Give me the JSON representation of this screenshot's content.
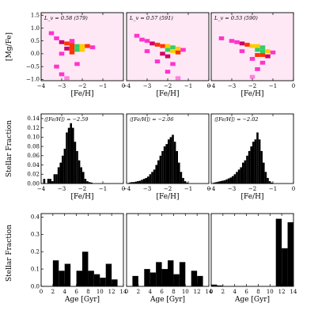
{
  "chart_data": [
    {
      "type": "heatmap",
      "panel": "top-left",
      "annotation": "L_v = 0.58 (579)",
      "xlabel": "[Fe/H]",
      "ylabel": "[Mg/Fe]",
      "xlim": [
        -4,
        0
      ],
      "ylim": [
        -1.05,
        1.6
      ],
      "xticks": [
        "−4",
        "−3",
        "−2",
        "−1",
        "0"
      ],
      "yticks": [
        "1.5",
        "1.0",
        "0.5",
        "0.0",
        "−0.5",
        "−1.0"
      ],
      "colormap": [
        "#ffe8f6",
        "#ff80e0",
        "#ff33cc",
        "#cc0066",
        "#ff3300",
        "#ffcc00",
        "#33cc66",
        "#3366ff"
      ],
      "cell_size": [
        0.25,
        0.15
      ],
      "cells": [
        {
          "x": -3.5,
          "y": 0.8,
          "v": 0.3
        },
        {
          "x": -3.25,
          "y": 0.6,
          "v": 0.25
        },
        {
          "x": -3.0,
          "y": 0.45,
          "v": 0.4
        },
        {
          "x": -2.75,
          "y": 0.4,
          "v": 0.5
        },
        {
          "x": -2.75,
          "y": 0.2,
          "v": 0.45
        },
        {
          "x": -2.5,
          "y": 0.35,
          "v": 0.6
        },
        {
          "x": -2.5,
          "y": 0.2,
          "v": 0.55
        },
        {
          "x": -2.25,
          "y": 0.3,
          "v": 0.9
        },
        {
          "x": -2.25,
          "y": 0.15,
          "v": 0.85
        },
        {
          "x": -2.5,
          "y": 0.05,
          "v": 0.5
        },
        {
          "x": -2.0,
          "y": 0.3,
          "v": 0.75
        },
        {
          "x": -2.0,
          "y": 0.15,
          "v": 0.7
        },
        {
          "x": -1.75,
          "y": 0.3,
          "v": 0.5
        },
        {
          "x": -1.5,
          "y": 0.25,
          "v": 0.35
        },
        {
          "x": -3.0,
          "y": 0.0,
          "v": 0.3
        },
        {
          "x": -3.25,
          "y": -0.5,
          "v": 0.3
        },
        {
          "x": -3.0,
          "y": -0.8,
          "v": 0.25
        },
        {
          "x": -2.25,
          "y": -0.4,
          "v": 0.25
        },
        {
          "x": -2.75,
          "y": -0.95,
          "v": 0.2
        },
        {
          "x": -2.5,
          "y": 0.5,
          "v": 0.3
        }
      ]
    },
    {
      "type": "heatmap",
      "panel": "top-middle",
      "annotation": "L_v = 0.57 (591)",
      "xlabel": "[Fe/H]",
      "ylabel": "",
      "xlim": [
        -4,
        0
      ],
      "ylim": [
        -1.05,
        1.6
      ],
      "xticks": [
        "−4",
        "−3",
        "−2",
        "−1",
        "0"
      ],
      "yticks": [],
      "cells": [
        {
          "x": -3.5,
          "y": 0.7,
          "v": 0.25
        },
        {
          "x": -3.25,
          "y": 0.55,
          "v": 0.3
        },
        {
          "x": -3.0,
          "y": 0.5,
          "v": 0.35
        },
        {
          "x": -2.75,
          "y": 0.4,
          "v": 0.4
        },
        {
          "x": -2.5,
          "y": 0.35,
          "v": 0.5
        },
        {
          "x": -2.25,
          "y": 0.3,
          "v": 0.6
        },
        {
          "x": -2.0,
          "y": 0.3,
          "v": 0.75
        },
        {
          "x": -2.0,
          "y": 0.15,
          "v": 0.8
        },
        {
          "x": -1.75,
          "y": 0.25,
          "v": 0.85
        },
        {
          "x": -1.75,
          "y": 0.1,
          "v": 0.75
        },
        {
          "x": -1.5,
          "y": 0.2,
          "v": 0.65
        },
        {
          "x": -1.5,
          "y": 0.05,
          "v": 0.5
        },
        {
          "x": -2.25,
          "y": 0.0,
          "v": 0.45
        },
        {
          "x": -2.0,
          "y": -0.1,
          "v": 0.4
        },
        {
          "x": -1.25,
          "y": 0.15,
          "v": 0.35
        },
        {
          "x": -2.5,
          "y": -0.3,
          "v": 0.3
        },
        {
          "x": -1.75,
          "y": -0.4,
          "v": 0.3
        },
        {
          "x": -2.0,
          "y": -0.7,
          "v": 0.25
        },
        {
          "x": -1.5,
          "y": -0.95,
          "v": 0.2
        },
        {
          "x": -3.0,
          "y": 0.1,
          "v": 0.3
        }
      ]
    },
    {
      "type": "heatmap",
      "panel": "top-right",
      "annotation": "L_v = 0.53 (590)",
      "xlabel": "[Fe/H]",
      "ylabel": "",
      "xlim": [
        -4,
        0
      ],
      "ylim": [
        -1.05,
        1.6
      ],
      "xticks": [
        "−4",
        "−3",
        "−2",
        "−1",
        "0"
      ],
      "yticks": [],
      "cells": [
        {
          "x": -3.5,
          "y": 0.6,
          "v": 0.25
        },
        {
          "x": -3.0,
          "y": 0.5,
          "v": 0.3
        },
        {
          "x": -2.75,
          "y": 0.45,
          "v": 0.35
        },
        {
          "x": -2.5,
          "y": 0.4,
          "v": 0.4
        },
        {
          "x": -2.25,
          "y": 0.35,
          "v": 0.5
        },
        {
          "x": -2.0,
          "y": 0.3,
          "v": 0.65
        },
        {
          "x": -1.75,
          "y": 0.3,
          "v": 0.75
        },
        {
          "x": -1.5,
          "y": 0.25,
          "v": 0.9
        },
        {
          "x": -1.75,
          "y": 0.15,
          "v": 0.8
        },
        {
          "x": -1.5,
          "y": 0.1,
          "v": 0.8
        },
        {
          "x": -1.25,
          "y": 0.1,
          "v": 0.65
        },
        {
          "x": -1.5,
          "y": -0.05,
          "v": 0.55
        },
        {
          "x": -1.75,
          "y": -0.05,
          "v": 0.5
        },
        {
          "x": -1.25,
          "y": -0.1,
          "v": 0.4
        },
        {
          "x": -2.0,
          "y": -0.2,
          "v": 0.35
        },
        {
          "x": -1.5,
          "y": -0.35,
          "v": 0.3
        },
        {
          "x": -1.75,
          "y": -0.6,
          "v": 0.25
        },
        {
          "x": -2.0,
          "y": -0.9,
          "v": 0.2
        },
        {
          "x": -1.0,
          "y": 0.05,
          "v": 0.3
        },
        {
          "x": -2.5,
          "y": 0.1,
          "v": 0.3
        }
      ]
    },
    {
      "type": "bar",
      "panel": "middle-left",
      "annotation": "⟨[Fe/H]⟩ = −2.59",
      "xlabel": "[Fe/H]",
      "ylabel": "Stellar Fraction",
      "xlim": [
        -4,
        0
      ],
      "ylim": [
        0,
        0.15
      ],
      "xticks": [
        "−4",
        "−3",
        "−2",
        "−1",
        "0"
      ],
      "yticks": [
        "0.00",
        "0.02",
        "0.04",
        "0.06",
        "0.08",
        "0.10",
        "0.12",
        "0.14"
      ],
      "bin_width": 0.1,
      "x": [
        -3.85,
        -3.75,
        -3.65,
        -3.55,
        -3.45,
        -3.35,
        -3.25,
        -3.15,
        -3.05,
        -2.95,
        -2.85,
        -2.75,
        -2.65,
        -2.55,
        -2.45,
        -2.35,
        -2.25,
        -2.15,
        -2.05,
        -1.95,
        -1.85,
        -1.75,
        -1.65,
        -1.55
      ],
      "values": [
        0.01,
        0.0,
        0.01,
        0.01,
        0.005,
        0.02,
        0.02,
        0.035,
        0.045,
        0.06,
        0.075,
        0.11,
        0.12,
        0.13,
        0.12,
        0.09,
        0.07,
        0.05,
        0.035,
        0.025,
        0.01,
        0.005,
        0.003,
        0.002
      ]
    },
    {
      "type": "bar",
      "panel": "middle-center",
      "annotation": "⟨[Fe/H]⟩ = −2.06",
      "xlabel": "[Fe/H]",
      "ylabel": "",
      "xlim": [
        -4,
        0
      ],
      "ylim": [
        0,
        0.15
      ],
      "xticks": [
        "−4",
        "−3",
        "−2",
        "−1",
        "0"
      ],
      "yticks": [],
      "bin_width": 0.1,
      "x": [
        -3.85,
        -3.75,
        -3.65,
        -3.55,
        -3.45,
        -3.35,
        -3.25,
        -3.15,
        -3.05,
        -2.95,
        -2.85,
        -2.75,
        -2.65,
        -2.55,
        -2.45,
        -2.35,
        -2.25,
        -2.15,
        -2.05,
        -1.95,
        -1.85,
        -1.75,
        -1.65,
        -1.55,
        -1.45,
        -1.35,
        -1.25,
        -1.15,
        -1.05
      ],
      "values": [
        0.002,
        0.003,
        0.003,
        0.004,
        0.005,
        0.006,
        0.008,
        0.01,
        0.012,
        0.015,
        0.02,
        0.025,
        0.03,
        0.04,
        0.05,
        0.06,
        0.07,
        0.08,
        0.085,
        0.095,
        0.1,
        0.105,
        0.09,
        0.07,
        0.045,
        0.025,
        0.012,
        0.005,
        0.002
      ]
    },
    {
      "type": "bar",
      "panel": "middle-right",
      "annotation": "⟨[Fe/H]⟩ = −2.02",
      "xlabel": "[Fe/H]",
      "ylabel": "",
      "xlim": [
        -4,
        0
      ],
      "ylim": [
        0,
        0.15
      ],
      "xticks": [
        "−4",
        "−3",
        "−2",
        "−1",
        "0"
      ],
      "yticks": [],
      "bin_width": 0.1,
      "x": [
        -3.85,
        -3.75,
        -3.65,
        -3.55,
        -3.45,
        -3.35,
        -3.25,
        -3.15,
        -3.05,
        -2.95,
        -2.85,
        -2.75,
        -2.65,
        -2.55,
        -2.45,
        -2.35,
        -2.25,
        -2.15,
        -2.05,
        -1.95,
        -1.85,
        -1.75,
        -1.65,
        -1.55,
        -1.45,
        -1.35,
        -1.25,
        -1.15,
        -1.05
      ],
      "values": [
        0.002,
        0.003,
        0.004,
        0.005,
        0.006,
        0.007,
        0.009,
        0.011,
        0.013,
        0.016,
        0.02,
        0.025,
        0.03,
        0.035,
        0.045,
        0.05,
        0.06,
        0.07,
        0.08,
        0.09,
        0.095,
        0.11,
        0.095,
        0.07,
        0.045,
        0.025,
        0.012,
        0.005,
        0.002
      ]
    },
    {
      "type": "bar",
      "panel": "bottom-left",
      "xlabel": "Age [Gyr]",
      "ylabel": "Stellar Fraction",
      "xlim": [
        0,
        14
      ],
      "ylim": [
        0,
        0.42
      ],
      "xticks": [
        "0",
        "2",
        "4",
        "6",
        "8",
        "10",
        "12",
        "14"
      ],
      "yticks": [
        "0.0",
        "0.1",
        "0.2",
        "0.3",
        "0.4"
      ],
      "bin_width": 1,
      "x": [
        0.5,
        1.5,
        2.5,
        3.5,
        4.5,
        5.5,
        6.5,
        7.5,
        8.5,
        9.5,
        10.5,
        11.5,
        12.5,
        13.5
      ],
      "values": [
        0,
        0,
        0.15,
        0.09,
        0.13,
        0,
        0.09,
        0.2,
        0.09,
        0.07,
        0.05,
        0.13,
        0.04,
        0
      ]
    },
    {
      "type": "bar",
      "panel": "bottom-center",
      "xlabel": "Age [Gyr]",
      "ylabel": "",
      "xlim": [
        0,
        14
      ],
      "ylim": [
        0,
        0.42
      ],
      "xticks": [
        "0",
        "2",
        "4",
        "6",
        "8",
        "10",
        "12",
        "14"
      ],
      "yticks": [],
      "bin_width": 1,
      "x": [
        0.5,
        1.5,
        2.5,
        3.5,
        4.5,
        5.5,
        6.5,
        7.5,
        8.5,
        9.5,
        10.5,
        11.5,
        12.5,
        13.5
      ],
      "values": [
        0,
        0.06,
        0,
        0.1,
        0.08,
        0.14,
        0.1,
        0.15,
        0.07,
        0.14,
        0,
        0.09,
        0.06,
        0
      ]
    },
    {
      "type": "bar",
      "panel": "bottom-right",
      "xlabel": "Age [Gyr]",
      "ylabel": "",
      "xlim": [
        0,
        14
      ],
      "ylim": [
        0,
        0.42
      ],
      "xticks": [
        "0",
        "2",
        "4",
        "6",
        "8",
        "10",
        "12",
        "14"
      ],
      "yticks": [],
      "bin_width": 1,
      "x": [
        0.5,
        1.5,
        2.5,
        3.5,
        4.5,
        5.5,
        6.5,
        7.5,
        8.5,
        9.5,
        10.5,
        11.5,
        12.5,
        13.5
      ],
      "values": [
        0.01,
        0.005,
        0,
        0,
        0,
        0,
        0,
        0,
        0,
        0,
        0,
        0.39,
        0.22,
        0.37
      ]
    }
  ]
}
